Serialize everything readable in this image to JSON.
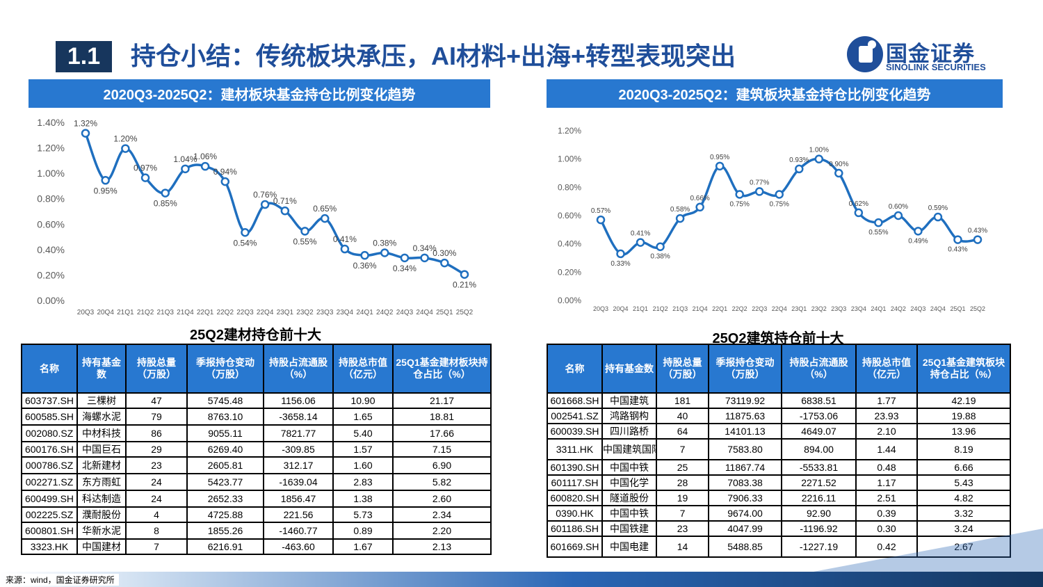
{
  "header": {
    "section_number": "1.1",
    "title": "持仓小结：传统板块承压，AI材料+出海+转型表现突出",
    "logo_cn": "国金证券",
    "logo_en": "SINOLINK SECURITIES"
  },
  "colors": {
    "accent": "#2878d0",
    "navy": "#17365d",
    "line": "#1f6fbf"
  },
  "chart_data": [
    {
      "type": "line",
      "title": "2020Q3-2025Q2：建材板块基金持仓比例变化趋势",
      "categories": [
        "20Q3",
        "20Q4",
        "21Q1",
        "21Q2",
        "21Q3",
        "21Q4",
        "22Q1",
        "22Q2",
        "22Q3",
        "22Q4",
        "23Q1",
        "23Q2",
        "23Q3",
        "23Q4",
        "24Q1",
        "24Q2",
        "24Q3",
        "24Q4",
        "25Q1",
        "25Q2"
      ],
      "values": [
        1.32,
        0.95,
        1.2,
        0.97,
        0.85,
        1.04,
        1.06,
        0.94,
        0.54,
        0.76,
        0.71,
        0.55,
        0.65,
        0.41,
        0.36,
        0.38,
        0.34,
        0.34,
        0.3,
        0.21
      ],
      "data_labels": [
        "1.32%",
        "0.95%",
        "1.20%",
        "0.97%",
        "0.85%",
        "1.04%",
        "1.06%",
        "0.94%",
        "0.54%",
        "0.76%",
        "0.71%",
        "0.55%",
        "0.65%",
        "0.41%",
        "0.36%",
        "0.38%",
        "0.34%",
        "0.34%",
        "0.30%",
        "0.21%"
      ],
      "yticks": [
        "0.00%",
        "0.20%",
        "0.40%",
        "0.60%",
        "0.80%",
        "1.00%",
        "1.20%",
        "1.40%"
      ],
      "ylim": [
        0,
        1.4
      ],
      "grid": false,
      "unit": "%"
    },
    {
      "type": "line",
      "title": "2020Q3-2025Q2：建筑板块基金持仓比例变化趋势",
      "categories": [
        "20Q3",
        "20Q4",
        "21Q1",
        "21Q2",
        "21Q3",
        "21Q4",
        "22Q1",
        "22Q2",
        "22Q3",
        "22Q4",
        "23Q1",
        "23Q2",
        "23Q3",
        "23Q4",
        "24Q1",
        "24Q2",
        "24Q3",
        "24Q4",
        "25Q1",
        "25Q2"
      ],
      "values": [
        0.57,
        0.33,
        0.41,
        0.38,
        0.58,
        0.66,
        0.95,
        0.75,
        0.77,
        0.75,
        0.93,
        1.0,
        0.9,
        0.62,
        0.55,
        0.6,
        0.49,
        0.59,
        0.43,
        0.43
      ],
      "data_labels": [
        "0.57%",
        "0.33%",
        "0.41%",
        "0.38%",
        "0.58%",
        "0.66%",
        "0.95%",
        "0.75%",
        "0.77%",
        "0.75%",
        "0.93%",
        "1.00%",
        "0.90%",
        "0.62%",
        "0.55%",
        "0.60%",
        "0.49%",
        "0.59%",
        "0.43%",
        "0.43%"
      ],
      "yticks": [
        "0.00%",
        "0.20%",
        "0.40%",
        "0.60%",
        "0.80%",
        "1.00%",
        "1.20%"
      ],
      "ylim": [
        0,
        1.2
      ],
      "grid": false,
      "unit": "%"
    }
  ],
  "tables": [
    {
      "title": "25Q2建材持仓前十大",
      "headers": [
        "名称",
        "持有基金数",
        "持股总量（万股）",
        "季报持仓变动（万股）",
        "持股占流通股（%）",
        "持股总市值（亿元）",
        "25Q1基金建材板块持仓占比（%）"
      ],
      "rows": [
        [
          "603737.SH",
          "三棵树",
          "47",
          "5745.48",
          "1156.06",
          "10.90",
          "21.17"
        ],
        [
          "600585.SH",
          "海螺水泥",
          "79",
          "8763.10",
          "-3658.14",
          "1.65",
          "18.81"
        ],
        [
          "002080.SZ",
          "中材科技",
          "86",
          "9055.11",
          "7821.77",
          "5.40",
          "17.66"
        ],
        [
          "600176.SH",
          "中国巨石",
          "29",
          "6269.40",
          "-309.85",
          "1.57",
          "7.15"
        ],
        [
          "000786.SZ",
          "北新建材",
          "23",
          "2605.81",
          "312.17",
          "1.60",
          "6.90"
        ],
        [
          "002271.SZ",
          "东方雨虹",
          "24",
          "5423.77",
          "-1639.04",
          "2.83",
          "5.82"
        ],
        [
          "600499.SH",
          "科达制造",
          "24",
          "2652.33",
          "1856.47",
          "1.38",
          "2.60"
        ],
        [
          "002225.SZ",
          "濮耐股份",
          "4",
          "4725.88",
          "221.56",
          "5.73",
          "2.34"
        ],
        [
          "600801.SH",
          "华新水泥",
          "8",
          "1855.26",
          "-1460.77",
          "0.89",
          "2.20"
        ],
        [
          "3323.HK",
          "中国建材",
          "7",
          "6216.91",
          "-463.60",
          "1.67",
          "2.13"
        ]
      ]
    },
    {
      "title": "25Q2建筑持仓前十大",
      "headers": [
        "名称",
        "持有基金数",
        "持股总量（万股）",
        "季报持仓变动（万股）",
        "持股占流通股（%）",
        "持股总市值（亿元）",
        "25Q1基金建筑板块持仓占比（%）"
      ],
      "rows": [
        [
          "601668.SH",
          "中国建筑",
          "181",
          "73119.92",
          "6838.51",
          "1.77",
          "42.19"
        ],
        [
          "002541.SZ",
          "鸿路钢构",
          "40",
          "11875.63",
          "-1753.06",
          "23.93",
          "19.88"
        ],
        [
          "600039.SH",
          "四川路桥",
          "64",
          "14101.13",
          "4649.07",
          "2.10",
          "13.96"
        ],
        [
          "3311.HK",
          "中国建筑国际",
          "7",
          "7583.80",
          "894.00",
          "1.44",
          "8.19"
        ],
        [
          "601390.SH",
          "中国中铁",
          "25",
          "11867.74",
          "-5533.81",
          "0.48",
          "6.66"
        ],
        [
          "601117.SH",
          "中国化学",
          "28",
          "7083.38",
          "2271.52",
          "1.17",
          "5.43"
        ],
        [
          "600820.SH",
          "隧道股份",
          "19",
          "7906.33",
          "2216.11",
          "2.51",
          "4.82"
        ],
        [
          "0390.HK",
          "中国中铁",
          "7",
          "9674.00",
          "92.90",
          "0.39",
          "3.32"
        ],
        [
          "601186.SH",
          "中国铁建",
          "23",
          "4047.99",
          "-1196.92",
          "0.30",
          "3.24"
        ],
        [
          "601669.SH",
          "中国电建",
          "14",
          "5488.85",
          "-1227.19",
          "0.42",
          "2.67"
        ]
      ]
    }
  ],
  "footer": {
    "source": "来源：wind，国金证券研究所"
  }
}
